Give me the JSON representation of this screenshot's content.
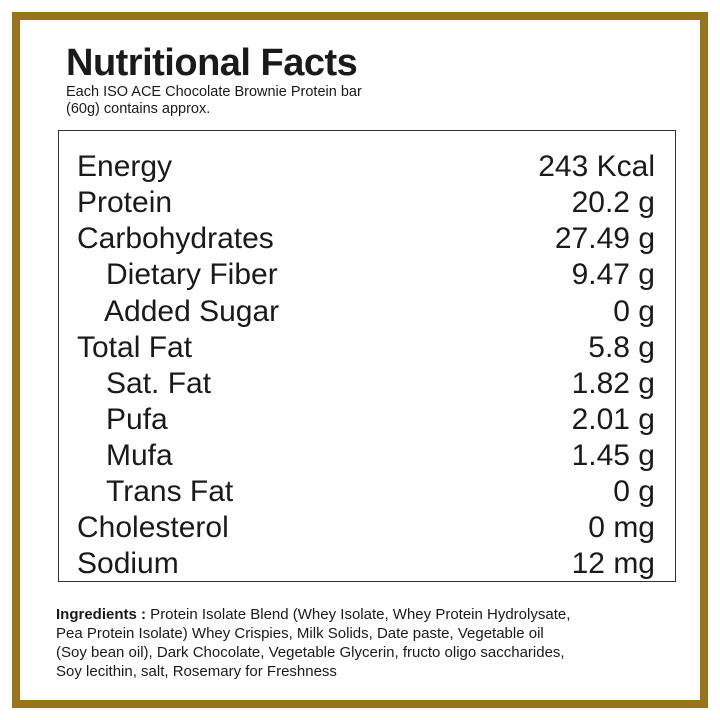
{
  "header": {
    "title": "Nutritional Facts",
    "subtitle": [
      "Each ISO ACE Chocolate Brownie Protein bar",
      "(60g) contains approx."
    ]
  },
  "table": {
    "rows": [
      [
        "Energy",
        "243 Kcal"
      ],
      [
        "Protein",
        "20.2 g"
      ],
      [
        "Carbohydrates",
        "27.49 g"
      ],
      [
        "Dietary Fiber",
        "9.47 g"
      ],
      [
        "Added Sugar",
        "0 g"
      ],
      [
        "Total Fat",
        "5.8 g"
      ],
      [
        "Sat. Fat",
        "1.82 g"
      ],
      [
        "Pufa",
        "2.01 g"
      ],
      [
        "Mufa",
        "1.45 g"
      ],
      [
        "Trans Fat",
        "0 g"
      ],
      [
        "Cholesterol",
        "0 mg"
      ],
      [
        "Sodium",
        "12 mg"
      ]
    ]
  },
  "ingredients": {
    "label": "Ingredients :",
    "lines": [
      " Protein Isolate Blend (Whey Isolate, Whey Protein Hydrolysate,",
      "Pea Protein Isolate) Whey Crispies, Milk Solids, Date paste, Vegetable oil",
      "(Soy bean oil), Dark Chocolate, Vegetable Glycerin, fructo oligo saccharides,",
      "Soy lecithin, salt, Rosemary for Freshness"
    ]
  }
}
